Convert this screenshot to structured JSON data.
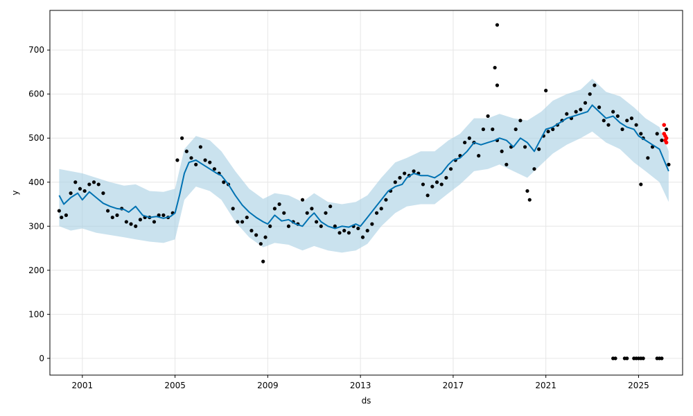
{
  "chart_data": {
    "type": "line",
    "xlabel": "ds",
    "ylabel": "y",
    "xlim": [
      1999.6,
      2026.9
    ],
    "ylim": [
      -38,
      790
    ],
    "xticks": [
      2001,
      2005,
      2009,
      2013,
      2017,
      2021,
      2025
    ],
    "xtick_labels": [
      "2001",
      "2005",
      "2009",
      "2013",
      "2017",
      "2021",
      "2025"
    ],
    "yticks": [
      0,
      100,
      200,
      300,
      400,
      500,
      600,
      700
    ],
    "ytick_labels": [
      "0",
      "100",
      "200",
      "300",
      "400",
      "500",
      "600",
      "700"
    ],
    "grid": true,
    "colors": {
      "forecast": "#0072B2",
      "interval": "#a6cee3",
      "observed": "#000000",
      "highlight": "#ff0000",
      "grid": "#e6e6e6"
    },
    "series": [
      {
        "role": "forecast",
        "x": [
          2000.0,
          2000.2,
          2000.5,
          2000.8,
          2001.0,
          2001.3,
          2001.6,
          2001.9,
          2002.2,
          2002.5,
          2002.8,
          2003.0,
          2003.3,
          2003.6,
          2003.9,
          2004.2,
          2004.5,
          2004.8,
          2005.0,
          2005.2,
          2005.4,
          2005.6,
          2005.9,
          2006.2,
          2006.5,
          2006.8,
          2007.0,
          2007.3,
          2007.6,
          2007.9,
          2008.2,
          2008.5,
          2008.8,
          2009.0,
          2009.3,
          2009.6,
          2009.9,
          2010.2,
          2010.5,
          2010.8,
          2011.0,
          2011.3,
          2011.6,
          2011.9,
          2012.2,
          2012.5,
          2012.8,
          2013.0,
          2013.3,
          2013.6,
          2013.9,
          2014.2,
          2014.5,
          2014.8,
          2015.0,
          2015.3,
          2015.6,
          2015.9,
          2016.2,
          2016.5,
          2016.8,
          2017.0,
          2017.3,
          2017.6,
          2017.9,
          2018.2,
          2018.5,
          2018.8,
          2019.0,
          2019.3,
          2019.6,
          2019.9,
          2020.2,
          2020.5,
          2020.8,
          2021.0,
          2021.3,
          2021.6,
          2021.9,
          2022.2,
          2022.5,
          2022.8,
          2023.0,
          2023.3,
          2023.6,
          2023.9,
          2024.2,
          2024.5,
          2024.8,
          2025.0,
          2025.3,
          2025.6,
          2025.9,
          2026.1,
          2026.3
        ],
        "y": [
          370,
          350,
          365,
          375,
          360,
          378,
          365,
          352,
          345,
          340,
          338,
          332,
          345,
          325,
          320,
          322,
          318,
          322,
          330,
          372,
          420,
          445,
          450,
          440,
          430,
          420,
          415,
          395,
          370,
          348,
          332,
          320,
          310,
          305,
          325,
          312,
          315,
          305,
          300,
          320,
          330,
          310,
          300,
          295,
          300,
          298,
          305,
          300,
          320,
          340,
          360,
          380,
          390,
          395,
          410,
          420,
          415,
          415,
          410,
          420,
          440,
          450,
          455,
          470,
          490,
          485,
          490,
          495,
          500,
          495,
          480,
          500,
          490,
          470,
          500,
          520,
          525,
          535,
          545,
          550,
          555,
          560,
          575,
          560,
          545,
          550,
          535,
          525,
          520,
          505,
          495,
          485,
          475,
          450,
          425
        ]
      },
      {
        "role": "interval",
        "x": [
          2000.0,
          2000.5,
          2001.0,
          2001.6,
          2002.2,
          2002.8,
          2003.3,
          2003.9,
          2004.5,
          2005.0,
          2005.4,
          2005.9,
          2006.5,
          2007.0,
          2007.6,
          2008.2,
          2008.8,
          2009.3,
          2009.9,
          2010.5,
          2011.0,
          2011.6,
          2012.2,
          2012.8,
          2013.3,
          2013.9,
          2014.5,
          2015.0,
          2015.6,
          2016.2,
          2016.8,
          2017.3,
          2017.9,
          2018.5,
          2019.0,
          2019.6,
          2020.2,
          2020.8,
          2021.3,
          2021.9,
          2022.5,
          2023.0,
          2023.6,
          2024.2,
          2024.8,
          2025.3,
          2025.9,
          2026.3
        ],
        "upper": [
          430,
          425,
          420,
          410,
          400,
          392,
          395,
          380,
          378,
          385,
          475,
          505,
          495,
          470,
          425,
          385,
          362,
          375,
          370,
          355,
          375,
          355,
          350,
          355,
          370,
          410,
          445,
          455,
          470,
          470,
          495,
          510,
          545,
          545,
          555,
          545,
          540,
          560,
          585,
          600,
          610,
          635,
          605,
          595,
          570,
          545,
          525,
          470
        ],
        "lower": [
          300,
          290,
          295,
          285,
          280,
          275,
          270,
          265,
          262,
          270,
          360,
          390,
          380,
          360,
          310,
          275,
          252,
          262,
          258,
          245,
          255,
          245,
          240,
          245,
          260,
          300,
          330,
          345,
          350,
          350,
          375,
          395,
          425,
          430,
          440,
          425,
          410,
          440,
          465,
          485,
          500,
          515,
          490,
          475,
          445,
          425,
          400,
          355
        ]
      }
    ],
    "observed": {
      "x": [
        2000.0,
        2000.1,
        2000.3,
        2000.5,
        2000.7,
        2000.9,
        2001.1,
        2001.3,
        2001.5,
        2001.7,
        2001.9,
        2002.1,
        2002.3,
        2002.5,
        2002.7,
        2002.9,
        2003.1,
        2003.3,
        2003.5,
        2003.7,
        2003.9,
        2004.1,
        2004.3,
        2004.5,
        2004.7,
        2004.9,
        2005.1,
        2005.3,
        2005.5,
        2005.7,
        2005.9,
        2006.1,
        2006.3,
        2006.5,
        2006.7,
        2006.9,
        2007.1,
        2007.3,
        2007.5,
        2007.7,
        2007.9,
        2008.1,
        2008.3,
        2008.5,
        2008.7,
        2008.8,
        2008.9,
        2009.1,
        2009.3,
        2009.5,
        2009.7,
        2009.9,
        2010.1,
        2010.3,
        2010.5,
        2010.7,
        2010.9,
        2011.1,
        2011.3,
        2011.5,
        2011.7,
        2011.9,
        2012.1,
        2012.3,
        2012.5,
        2012.7,
        2012.9,
        2013.1,
        2013.3,
        2013.5,
        2013.7,
        2013.9,
        2014.1,
        2014.3,
        2014.5,
        2014.7,
        2014.9,
        2015.1,
        2015.3,
        2015.5,
        2015.7,
        2015.9,
        2016.1,
        2016.3,
        2016.5,
        2016.7,
        2016.9,
        2017.1,
        2017.3,
        2017.5,
        2017.7,
        2017.9,
        2018.1,
        2018.3,
        2018.5,
        2018.7,
        2018.8,
        2018.9,
        2019.1,
        2019.3,
        2019.5,
        2019.7,
        2019.9,
        2020.1,
        2020.2,
        2020.3,
        2020.5,
        2020.7,
        2020.9,
        2021.1,
        2021.3,
        2021.5,
        2021.7,
        2021.9,
        2022.1,
        2022.3,
        2022.5,
        2022.7,
        2022.9,
        2023.1,
        2023.3,
        2023.5,
        2023.7,
        2023.9,
        2024.1,
        2024.3,
        2024.5,
        2024.7,
        2024.9,
        2025.1,
        2025.2,
        2025.4,
        2025.6,
        2025.8,
        2026.0,
        2026.1,
        2026.2,
        2026.3
      ],
      "y": [
        335,
        320,
        325,
        375,
        400,
        385,
        380,
        395,
        400,
        395,
        375,
        335,
        320,
        325,
        340,
        310,
        305,
        300,
        315,
        320,
        320,
        310,
        325,
        325,
        320,
        330,
        450,
        500,
        470,
        455,
        440,
        480,
        450,
        445,
        430,
        420,
        400,
        395,
        340,
        310,
        310,
        320,
        290,
        280,
        260,
        220,
        275,
        300,
        340,
        350,
        330,
        300,
        310,
        305,
        360,
        330,
        340,
        310,
        300,
        330,
        345,
        300,
        285,
        290,
        285,
        300,
        295,
        275,
        290,
        305,
        330,
        340,
        360,
        380,
        400,
        410,
        420,
        415,
        425,
        420,
        395,
        370,
        390,
        400,
        395,
        410,
        430,
        450,
        460,
        490,
        500,
        490,
        460,
        520,
        550,
        520,
        660,
        495,
        470,
        440,
        480,
        520,
        540,
        480,
        380,
        360,
        430,
        475,
        505,
        515,
        520,
        530,
        540,
        555,
        545,
        560,
        565,
        580,
        600,
        620,
        570,
        540,
        530,
        560,
        550,
        520,
        540,
        545,
        530,
        510,
        500,
        455,
        480,
        510,
        495,
        530,
        520,
        440
      ],
      "outliers": [
        {
          "x": 2018.9,
          "y": 757
        },
        {
          "x": 2018.9,
          "y": 620
        },
        {
          "x": 2021.0,
          "y": 608
        },
        {
          "x": 2025.1,
          "y": 395
        }
      ],
      "zero_points_x": [
        2023.9,
        2024.0,
        2024.4,
        2024.5,
        2024.8,
        2024.9,
        2025.0,
        2025.1,
        2025.2,
        2025.8,
        2025.9,
        2026.0
      ]
    },
    "highlighted": {
      "x": [
        2026.1,
        2026.1,
        2026.15,
        2026.15,
        2026.2,
        2026.2
      ],
      "y": [
        530,
        510,
        505,
        495,
        500,
        490
      ]
    }
  }
}
